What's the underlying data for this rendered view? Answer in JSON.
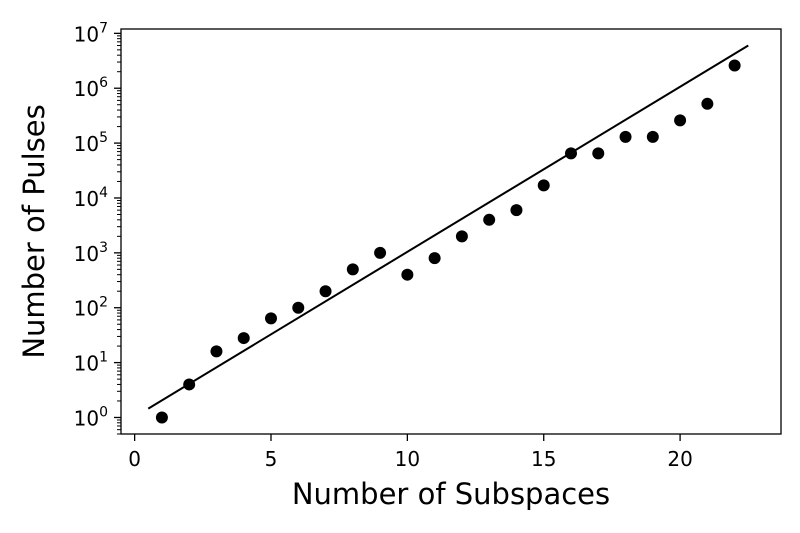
{
  "chart_data": {
    "type": "scatter",
    "xlabel": "Number of Subspaces",
    "ylabel": "Number of Pulses",
    "xlim": [
      -0.5,
      23.7
    ],
    "ylim": [
      0.5,
      12000000
    ],
    "yscale": "log",
    "grid": false,
    "x_ticks": [
      0,
      5,
      10,
      15,
      20
    ],
    "x_tick_labels": [
      "0",
      "5",
      "10",
      "15",
      "20"
    ],
    "y_ticks": [
      1,
      10,
      100,
      1000,
      10000,
      100000,
      1000000,
      10000000
    ],
    "y_tick_labels": [
      {
        "base": "10",
        "exp": "0"
      },
      {
        "base": "10",
        "exp": "1"
      },
      {
        "base": "10",
        "exp": "2"
      },
      {
        "base": "10",
        "exp": "3"
      },
      {
        "base": "10",
        "exp": "4"
      },
      {
        "base": "10",
        "exp": "5"
      },
      {
        "base": "10",
        "exp": "6"
      },
      {
        "base": "10",
        "exp": "7"
      }
    ],
    "colors": {
      "points": "#000000",
      "fit_line": "#000000"
    },
    "series": [
      {
        "kind": "points",
        "x": [
          1,
          2,
          3,
          4,
          5,
          6,
          7,
          8,
          9,
          10,
          11,
          12,
          13,
          14,
          15,
          16,
          17,
          18,
          19,
          20,
          21,
          22
        ],
        "y": [
          1,
          4,
          16,
          28,
          64,
          100,
          200,
          500,
          1000,
          400,
          800,
          2000,
          4000,
          6000,
          17000,
          65000,
          65000,
          130000,
          130000,
          260000,
          520000,
          2600000
        ]
      },
      {
        "kind": "fit-line",
        "x": [
          0.5,
          22.5
        ],
        "y": [
          1.45,
          6000000
        ]
      }
    ]
  }
}
